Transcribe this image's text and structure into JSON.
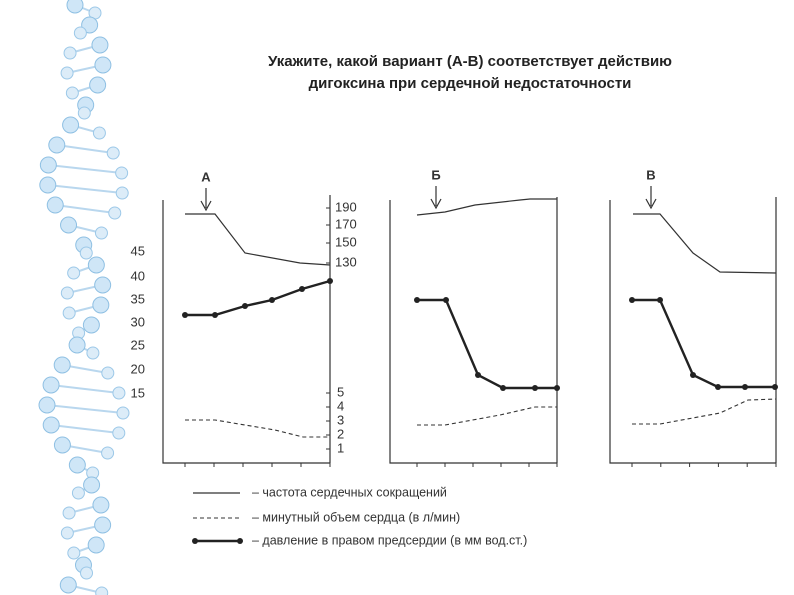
{
  "title": {
    "line1": "Укажите, какой вариант (А-В) соответствует действию",
    "line2": "дигоксина при сердечной недостаточности"
  },
  "panels": [
    {
      "label": "А"
    },
    {
      "label": "Б"
    },
    {
      "label": "В"
    }
  ],
  "left_axis_labels": [
    "45",
    "40",
    "35",
    "30",
    "25",
    "20",
    "15"
  ],
  "right_axis_upper_labels": [
    "190",
    "170",
    "150",
    "130"
  ],
  "right_axis_lower_labels": [
    "5",
    "4",
    "3",
    "2",
    "1"
  ],
  "legend": [
    "– частота сердечных сокращений",
    "– минутный объем сердца (в л/мин)",
    "– давление в правом предсердии (в мм вод.ст.)"
  ]
}
